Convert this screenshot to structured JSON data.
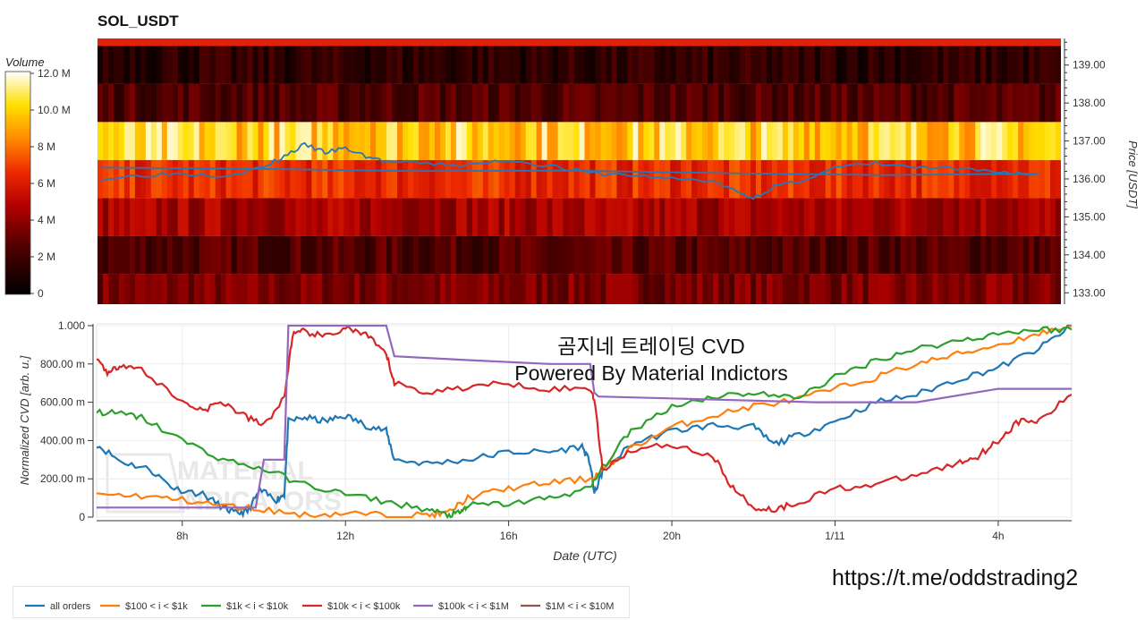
{
  "title": "SOL_USDT",
  "colorbar": {
    "title": "Volume",
    "ticks": [
      "12.0 M",
      "10.0 M",
      "8 M",
      "6 M",
      "4 M",
      "2 M",
      "0"
    ]
  },
  "heatmap": {
    "ylabel": "Price [USDT]",
    "price_ticks": [
      "139.00",
      "138.00",
      "137.00",
      "136.00",
      "135.00",
      "134.00",
      "133.00"
    ]
  },
  "watermark": {
    "line1": "곰지네 트레이딩 CVD",
    "line2": "Powered By Material Indictors"
  },
  "logo_text": [
    "MATERIAL",
    "INDICATORS"
  ],
  "url": "https://t.me/oddstrading2",
  "colors": {
    "all_orders": "#1f77b4",
    "s100_1k": "#ff7f0e",
    "s1k_10k": "#2ca02c",
    "s10k_100k": "#d62728",
    "s100k_1m": "#9467bd",
    "s1m_10m": "#8c564b"
  },
  "chart_data": [
    {
      "type": "heatmap",
      "title": "SOL_USDT",
      "ylabel": "Price [USDT]",
      "colorbar_label": "Volume",
      "ylim": [
        132.7,
        139.7
      ],
      "price_levels": [
        133,
        134,
        135,
        136,
        137,
        138,
        139
      ],
      "level_volume_approx_M": [
        3.5,
        2.5,
        4.5,
        6.5,
        10.0,
        2.5,
        1.5
      ],
      "price_series": {
        "name": "price",
        "x": [
          "06:00",
          "07:00",
          "08:00",
          "09:00",
          "10:00",
          "10:30",
          "11:00",
          "11:30",
          "12:00",
          "12:30",
          "13:00",
          "14:00",
          "15:00",
          "16:00",
          "17:00",
          "18:00",
          "19:00",
          "20:00",
          "21:00",
          "21:30",
          "22:00",
          "22:30",
          "23:00",
          "00:00",
          "01:00",
          "02:00",
          "03:00",
          "04:00",
          "05:00",
          "06:00"
        ],
        "y": [
          136.0,
          136.1,
          136.15,
          136.1,
          136.3,
          136.6,
          136.9,
          136.7,
          136.8,
          136.6,
          136.45,
          136.4,
          136.35,
          136.5,
          136.35,
          136.15,
          136.1,
          136.0,
          135.95,
          135.7,
          135.5,
          135.8,
          135.9,
          136.3,
          136.4,
          136.3,
          136.25,
          136.2,
          136.1,
          136.3
        ]
      }
    },
    {
      "type": "line",
      "xlabel": "Date (UTC)",
      "ylabel": "Normalized CVD [arb. u.]",
      "ylim": [
        0,
        1.0
      ],
      "y_ticks": [
        "1.000",
        "800.00 m",
        "600.00 m",
        "400.00 m",
        "200.00 m",
        "0"
      ],
      "x_ticks": [
        "8h",
        "12h",
        "16h",
        "20h",
        "1/11",
        "4h"
      ],
      "x_tick_hours": [
        8,
        12,
        16,
        20,
        24,
        28
      ],
      "xlim_hours": [
        5.9,
        29.8
      ],
      "legend_position": "bottom",
      "series": [
        {
          "name": "all orders",
          "x": [
            5.9,
            6.5,
            7.2,
            7.8,
            8.5,
            9.0,
            9.3,
            9.6,
            9.9,
            10.3,
            10.5,
            10.6,
            11.0,
            11.5,
            12.0,
            12.5,
            13.0,
            13.2,
            14.0,
            15.0,
            16.0,
            17.0,
            17.8,
            18.0,
            18.1,
            18.3,
            19.0,
            20.0,
            21.0,
            22.0,
            22.5,
            23.0,
            24.0,
            25.0,
            26.0,
            27.0,
            28.0,
            29.0,
            29.8
          ],
          "y": [
            0.38,
            0.29,
            0.25,
            0.15,
            0.12,
            0.05,
            0.02,
            0.03,
            0.14,
            0.09,
            0.12,
            0.5,
            0.52,
            0.5,
            0.53,
            0.48,
            0.45,
            0.3,
            0.28,
            0.3,
            0.34,
            0.34,
            0.37,
            0.28,
            0.12,
            0.24,
            0.38,
            0.45,
            0.48,
            0.47,
            0.38,
            0.42,
            0.5,
            0.6,
            0.64,
            0.72,
            0.78,
            0.88,
            1.0
          ]
        },
        {
          "name": "$100 < i < $1k",
          "x": [
            5.9,
            7.0,
            8.0,
            9.0,
            10.0,
            11.0,
            12.0,
            13.0,
            14.0,
            14.5,
            15.0,
            16.0,
            17.0,
            18.0,
            18.3,
            19.0,
            20.0,
            21.0,
            22.0,
            23.0,
            24.0,
            25.0,
            26.0,
            27.0,
            28.0,
            29.0,
            29.8
          ],
          "y": [
            0.12,
            0.11,
            0.09,
            0.06,
            0.04,
            0.01,
            0.02,
            0.01,
            0.01,
            0.02,
            0.1,
            0.15,
            0.18,
            0.2,
            0.24,
            0.36,
            0.47,
            0.53,
            0.58,
            0.61,
            0.67,
            0.73,
            0.8,
            0.85,
            0.9,
            0.96,
            1.0
          ]
        },
        {
          "name": "$1k < i < $10k",
          "x": [
            5.9,
            6.5,
            7.0,
            8.0,
            9.0,
            10.0,
            11.0,
            12.0,
            13.0,
            14.0,
            14.5,
            14.8,
            15.0,
            16.0,
            17.0,
            18.0,
            18.3,
            19.0,
            20.0,
            21.0,
            22.0,
            23.0,
            24.0,
            25.0,
            26.0,
            27.0,
            28.0,
            29.0,
            29.8
          ],
          "y": [
            0.55,
            0.54,
            0.52,
            0.4,
            0.3,
            0.25,
            0.17,
            0.12,
            0.08,
            0.04,
            0.01,
            0.02,
            0.06,
            0.07,
            0.1,
            0.15,
            0.26,
            0.45,
            0.58,
            0.63,
            0.65,
            0.62,
            0.73,
            0.82,
            0.88,
            0.92,
            0.96,
            0.98,
            0.98
          ]
        },
        {
          "name": "$10k < i < $100k",
          "x": [
            5.9,
            6.2,
            6.5,
            7.0,
            8.0,
            8.5,
            9.0,
            9.5,
            10.0,
            10.5,
            10.7,
            11.0,
            11.5,
            12.0,
            12.5,
            13.0,
            13.2,
            14.0,
            15.0,
            16.0,
            17.0,
            18.0,
            18.1,
            18.3,
            19.0,
            20.0,
            21.0,
            21.5,
            22.0,
            22.5,
            23.0,
            24.0,
            25.0,
            26.0,
            27.0,
            27.5,
            28.0,
            28.5,
            29.0,
            29.8
          ],
          "y": [
            0.83,
            0.75,
            0.8,
            0.77,
            0.6,
            0.56,
            0.6,
            0.53,
            0.48,
            0.62,
            0.95,
            0.97,
            0.94,
            0.99,
            0.95,
            0.85,
            0.7,
            0.65,
            0.68,
            0.7,
            0.67,
            0.67,
            0.62,
            0.25,
            0.35,
            0.38,
            0.32,
            0.15,
            0.05,
            0.04,
            0.07,
            0.15,
            0.17,
            0.22,
            0.28,
            0.32,
            0.4,
            0.5,
            0.5,
            0.64
          ]
        },
        {
          "name": "$100k < i < $1M",
          "x": [
            5.9,
            6.0,
            9.0,
            9.8,
            10.0,
            10.5,
            10.6,
            10.7,
            13.0,
            13.2,
            15.0,
            17.0,
            18.0,
            18.1,
            18.2,
            23.5,
            26.0,
            28.0,
            29.8
          ],
          "y": [
            0.05,
            0.05,
            0.05,
            0.05,
            0.3,
            0.3,
            1.0,
            1.0,
            1.0,
            0.84,
            0.82,
            0.8,
            0.8,
            0.65,
            0.63,
            0.6,
            0.6,
            0.67,
            0.67
          ]
        },
        {
          "name": "$1M < i < $10M",
          "x": [],
          "y": []
        }
      ]
    }
  ]
}
